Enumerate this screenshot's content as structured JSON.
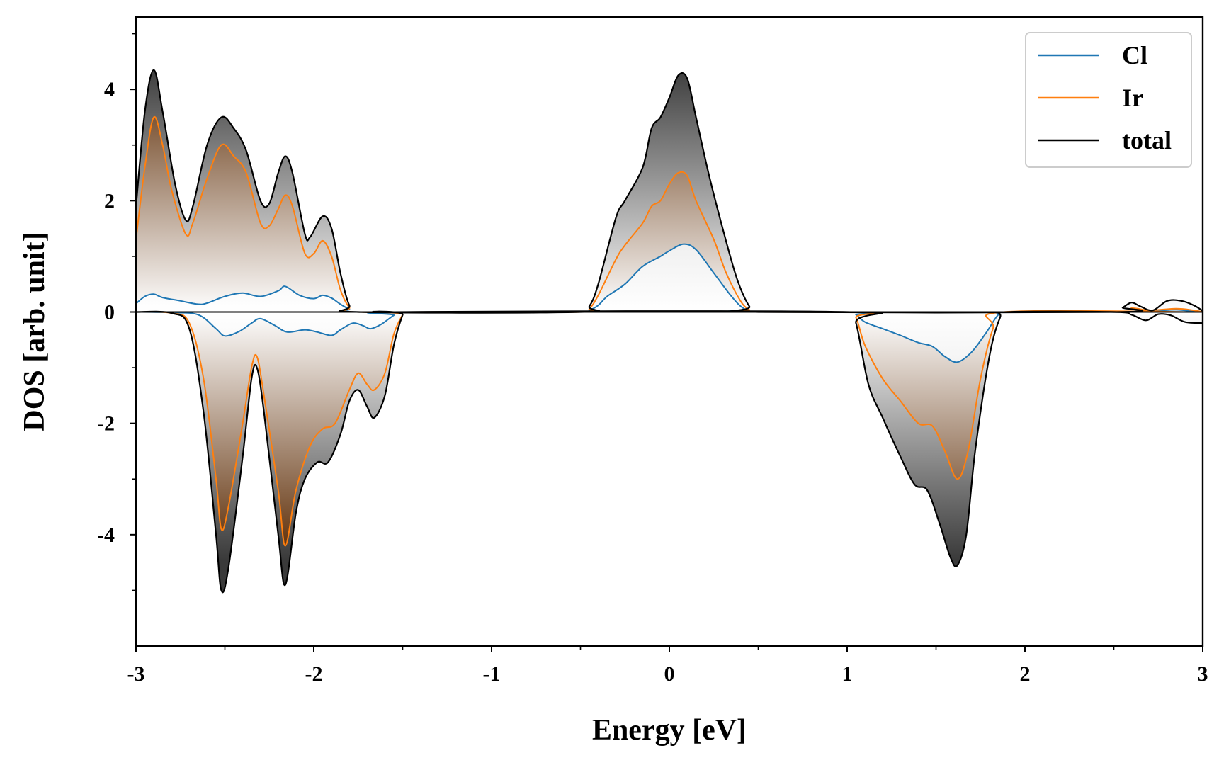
{
  "chart_data": {
    "type": "area",
    "xlabel": "Energy [eV]",
    "ylabel": "DOS [arb. unit]",
    "xlim": [
      -3,
      3
    ],
    "ylim": [
      -6,
      5.3
    ],
    "x_ticks": [
      "-3",
      "-2",
      "-1",
      "0",
      "1",
      "2",
      "3"
    ],
    "y_ticks": [
      "-4",
      "-2",
      "0",
      "2",
      "4"
    ],
    "x_tick_values": [
      -3,
      -2,
      -1,
      0,
      1,
      2,
      3
    ],
    "y_tick_values": [
      -4,
      -2,
      0,
      2,
      4
    ],
    "grid": false,
    "legend_position": "top-right",
    "series": [
      {
        "name": "Cl",
        "color": "#1f77b4",
        "up_points": [
          [
            -3.0,
            0.15
          ],
          [
            -2.95,
            0.28
          ],
          [
            -2.9,
            0.32
          ],
          [
            -2.85,
            0.26
          ],
          [
            -2.75,
            0.2
          ],
          [
            -2.65,
            0.14
          ],
          [
            -2.6,
            0.16
          ],
          [
            -2.5,
            0.28
          ],
          [
            -2.4,
            0.34
          ],
          [
            -2.3,
            0.28
          ],
          [
            -2.2,
            0.38
          ],
          [
            -2.16,
            0.46
          ],
          [
            -2.08,
            0.3
          ],
          [
            -2.0,
            0.24
          ],
          [
            -1.95,
            0.3
          ],
          [
            -1.9,
            0.25
          ],
          [
            -1.85,
            0.14
          ],
          [
            -1.8,
            0.05
          ],
          [
            -1.75,
            0.0
          ],
          [
            -0.5,
            0.0
          ],
          [
            -0.45,
            0.03
          ],
          [
            -0.4,
            0.12
          ],
          [
            -0.35,
            0.28
          ],
          [
            -0.25,
            0.5
          ],
          [
            -0.15,
            0.82
          ],
          [
            -0.05,
            1.0
          ],
          [
            0.0,
            1.1
          ],
          [
            0.08,
            1.22
          ],
          [
            0.15,
            1.12
          ],
          [
            0.25,
            0.7
          ],
          [
            0.35,
            0.28
          ],
          [
            0.42,
            0.06
          ],
          [
            0.5,
            0.0
          ],
          [
            2.5,
            0.0
          ],
          [
            2.6,
            0.05
          ],
          [
            2.7,
            0.02
          ],
          [
            2.85,
            0.04
          ],
          [
            2.95,
            0.01
          ],
          [
            3.0,
            0.0
          ]
        ],
        "down_points": [
          [
            -3.0,
            0.0
          ],
          [
            -2.8,
            -0.01
          ],
          [
            -2.65,
            -0.05
          ],
          [
            -2.55,
            -0.3
          ],
          [
            -2.5,
            -0.43
          ],
          [
            -2.42,
            -0.35
          ],
          [
            -2.35,
            -0.2
          ],
          [
            -2.3,
            -0.12
          ],
          [
            -2.22,
            -0.24
          ],
          [
            -2.15,
            -0.36
          ],
          [
            -2.05,
            -0.32
          ],
          [
            -1.98,
            -0.36
          ],
          [
            -1.9,
            -0.42
          ],
          [
            -1.85,
            -0.32
          ],
          [
            -1.78,
            -0.2
          ],
          [
            -1.72,
            -0.25
          ],
          [
            -1.68,
            -0.3
          ],
          [
            -1.62,
            -0.22
          ],
          [
            -1.55,
            -0.06
          ],
          [
            -1.5,
            0.0
          ],
          [
            1.0,
            0.0
          ],
          [
            1.05,
            -0.05
          ],
          [
            1.1,
            -0.18
          ],
          [
            1.2,
            -0.3
          ],
          [
            1.3,
            -0.42
          ],
          [
            1.4,
            -0.55
          ],
          [
            1.48,
            -0.62
          ],
          [
            1.55,
            -0.8
          ],
          [
            1.62,
            -0.9
          ],
          [
            1.7,
            -0.72
          ],
          [
            1.78,
            -0.38
          ],
          [
            1.85,
            -0.05
          ],
          [
            1.9,
            0.0
          ],
          [
            3.0,
            0.0
          ]
        ]
      },
      {
        "name": "Ir",
        "color": "#ff7f0e",
        "up_points": [
          [
            -3.0,
            1.3
          ],
          [
            -2.95,
            2.6
          ],
          [
            -2.9,
            3.5
          ],
          [
            -2.85,
            3.0
          ],
          [
            -2.8,
            2.2
          ],
          [
            -2.72,
            1.4
          ],
          [
            -2.68,
            1.6
          ],
          [
            -2.6,
            2.4
          ],
          [
            -2.52,
            3.0
          ],
          [
            -2.45,
            2.8
          ],
          [
            -2.38,
            2.5
          ],
          [
            -2.3,
            1.6
          ],
          [
            -2.25,
            1.55
          ],
          [
            -2.2,
            1.85
          ],
          [
            -2.16,
            2.1
          ],
          [
            -2.12,
            1.9
          ],
          [
            -2.05,
            1.05
          ],
          [
            -2.0,
            1.05
          ],
          [
            -1.95,
            1.28
          ],
          [
            -1.9,
            1.0
          ],
          [
            -1.85,
            0.4
          ],
          [
            -1.8,
            0.08
          ],
          [
            -1.75,
            0.0
          ],
          [
            -0.5,
            0.0
          ],
          [
            -0.45,
            0.06
          ],
          [
            -0.4,
            0.3
          ],
          [
            -0.3,
            0.95
          ],
          [
            -0.25,
            1.2
          ],
          [
            -0.15,
            1.6
          ],
          [
            -0.1,
            1.9
          ],
          [
            -0.05,
            2.0
          ],
          [
            0.0,
            2.3
          ],
          [
            0.05,
            2.5
          ],
          [
            0.1,
            2.45
          ],
          [
            0.15,
            2.0
          ],
          [
            0.25,
            1.3
          ],
          [
            0.32,
            0.7
          ],
          [
            0.4,
            0.2
          ],
          [
            0.45,
            0.04
          ],
          [
            0.5,
            0.0
          ],
          [
            2.5,
            0.0
          ],
          [
            2.6,
            0.07
          ],
          [
            2.7,
            0.03
          ],
          [
            2.85,
            0.06
          ],
          [
            2.95,
            0.03
          ],
          [
            3.0,
            0.0
          ]
        ],
        "down_points": [
          [
            -3.0,
            0.0
          ],
          [
            -2.8,
            -0.02
          ],
          [
            -2.7,
            -0.2
          ],
          [
            -2.62,
            -1.2
          ],
          [
            -2.55,
            -3.0
          ],
          [
            -2.52,
            -3.9
          ],
          [
            -2.48,
            -3.5
          ],
          [
            -2.4,
            -2.0
          ],
          [
            -2.35,
            -1.0
          ],
          [
            -2.32,
            -0.8
          ],
          [
            -2.28,
            -1.5
          ],
          [
            -2.2,
            -3.2
          ],
          [
            -2.16,
            -4.2
          ],
          [
            -2.1,
            -3.2
          ],
          [
            -2.02,
            -2.4
          ],
          [
            -1.95,
            -2.1
          ],
          [
            -1.88,
            -2.0
          ],
          [
            -1.8,
            -1.4
          ],
          [
            -1.75,
            -1.1
          ],
          [
            -1.7,
            -1.3
          ],
          [
            -1.66,
            -1.4
          ],
          [
            -1.6,
            -1.1
          ],
          [
            -1.55,
            -0.4
          ],
          [
            -1.5,
            -0.05
          ],
          [
            -1.48,
            0.0
          ],
          [
            1.0,
            0.0
          ],
          [
            1.05,
            -0.1
          ],
          [
            1.1,
            -0.6
          ],
          [
            1.2,
            -1.2
          ],
          [
            1.3,
            -1.6
          ],
          [
            1.4,
            -2.0
          ],
          [
            1.48,
            -2.05
          ],
          [
            1.55,
            -2.5
          ],
          [
            1.62,
            -3.0
          ],
          [
            1.68,
            -2.5
          ],
          [
            1.75,
            -1.2
          ],
          [
            1.82,
            -0.3
          ],
          [
            1.88,
            0.0
          ],
          [
            3.0,
            0.0
          ]
        ]
      },
      {
        "name": "total",
        "color": "#000000",
        "up_points": [
          [
            -3.0,
            1.9
          ],
          [
            -2.95,
            3.6
          ],
          [
            -2.9,
            4.35
          ],
          [
            -2.85,
            3.6
          ],
          [
            -2.78,
            2.3
          ],
          [
            -2.72,
            1.65
          ],
          [
            -2.68,
            1.9
          ],
          [
            -2.6,
            3.0
          ],
          [
            -2.52,
            3.5
          ],
          [
            -2.45,
            3.3
          ],
          [
            -2.38,
            2.9
          ],
          [
            -2.3,
            2.0
          ],
          [
            -2.25,
            1.95
          ],
          [
            -2.2,
            2.5
          ],
          [
            -2.16,
            2.8
          ],
          [
            -2.12,
            2.5
          ],
          [
            -2.05,
            1.4
          ],
          [
            -2.02,
            1.35
          ],
          [
            -1.95,
            1.72
          ],
          [
            -1.9,
            1.5
          ],
          [
            -1.85,
            0.7
          ],
          [
            -1.8,
            0.12
          ],
          [
            -1.75,
            0.0
          ],
          [
            -0.5,
            0.0
          ],
          [
            -0.45,
            0.1
          ],
          [
            -0.4,
            0.5
          ],
          [
            -0.3,
            1.7
          ],
          [
            -0.25,
            2.0
          ],
          [
            -0.15,
            2.6
          ],
          [
            -0.1,
            3.3
          ],
          [
            -0.05,
            3.5
          ],
          [
            0.0,
            3.85
          ],
          [
            0.05,
            4.25
          ],
          [
            0.1,
            4.2
          ],
          [
            0.15,
            3.5
          ],
          [
            0.22,
            2.5
          ],
          [
            0.3,
            1.5
          ],
          [
            0.38,
            0.6
          ],
          [
            0.45,
            0.1
          ],
          [
            0.5,
            0.0
          ],
          [
            2.5,
            0.0
          ],
          [
            2.55,
            0.08
          ],
          [
            2.6,
            0.17
          ],
          [
            2.65,
            0.1
          ],
          [
            2.72,
            0.03
          ],
          [
            2.8,
            0.2
          ],
          [
            2.88,
            0.2
          ],
          [
            2.95,
            0.12
          ],
          [
            3.0,
            0.02
          ]
        ],
        "down_points": [
          [
            -3.0,
            0.0
          ],
          [
            -2.8,
            -0.02
          ],
          [
            -2.7,
            -0.3
          ],
          [
            -2.62,
            -1.8
          ],
          [
            -2.55,
            -4.0
          ],
          [
            -2.52,
            -5.0
          ],
          [
            -2.48,
            -4.6
          ],
          [
            -2.4,
            -2.6
          ],
          [
            -2.35,
            -1.2
          ],
          [
            -2.32,
            -1.0
          ],
          [
            -2.28,
            -1.8
          ],
          [
            -2.2,
            -4.0
          ],
          [
            -2.16,
            -4.9
          ],
          [
            -2.1,
            -3.6
          ],
          [
            -2.05,
            -3.0
          ],
          [
            -1.98,
            -2.7
          ],
          [
            -1.92,
            -2.7
          ],
          [
            -1.85,
            -2.2
          ],
          [
            -1.8,
            -1.6
          ],
          [
            -1.75,
            -1.4
          ],
          [
            -1.7,
            -1.7
          ],
          [
            -1.66,
            -1.9
          ],
          [
            -1.6,
            -1.5
          ],
          [
            -1.55,
            -0.6
          ],
          [
            -1.5,
            -0.05
          ],
          [
            -1.48,
            0.0
          ],
          [
            1.0,
            0.0
          ],
          [
            1.05,
            -0.2
          ],
          [
            1.12,
            -1.3
          ],
          [
            1.2,
            -1.9
          ],
          [
            1.3,
            -2.6
          ],
          [
            1.38,
            -3.1
          ],
          [
            1.45,
            -3.2
          ],
          [
            1.52,
            -3.8
          ],
          [
            1.58,
            -4.4
          ],
          [
            1.62,
            -4.55
          ],
          [
            1.67,
            -4.0
          ],
          [
            1.72,
            -2.5
          ],
          [
            1.8,
            -0.8
          ],
          [
            1.86,
            -0.1
          ],
          [
            1.9,
            0.0
          ],
          [
            2.5,
            0.0
          ],
          [
            2.6,
            -0.05
          ],
          [
            2.68,
            -0.15
          ],
          [
            2.75,
            -0.04
          ],
          [
            2.82,
            -0.06
          ],
          [
            2.9,
            -0.18
          ],
          [
            3.0,
            -0.2
          ]
        ]
      }
    ]
  },
  "legend": {
    "items": [
      {
        "label": "Cl",
        "color": "#1f77b4"
      },
      {
        "label": "Ir",
        "color": "#ff7f0e"
      },
      {
        "label": "total",
        "color": "#000000"
      }
    ]
  },
  "axes": {
    "xlabel": "Energy [eV]",
    "ylabel": "DOS [arb. unit]"
  }
}
